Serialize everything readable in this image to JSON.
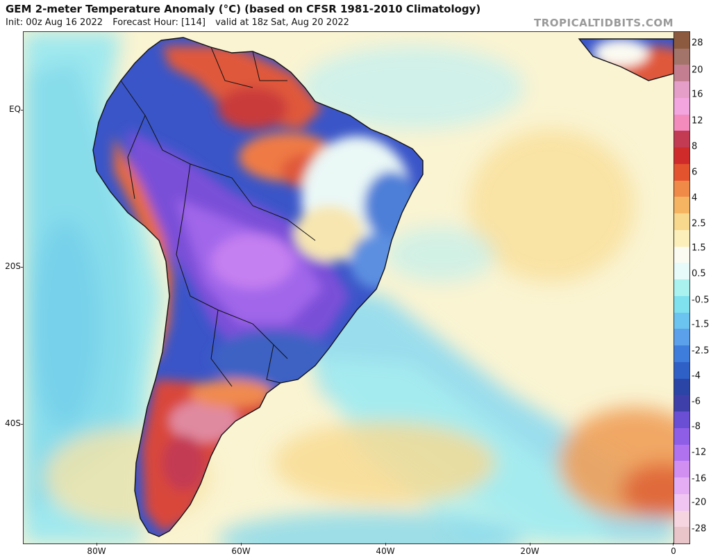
{
  "header": {
    "title": "GEM 2-meter Temperature Anomaly (°C) (based on CFSR 1981-2010 Climatology)",
    "init": "Init: 00z Aug 16 2022",
    "forecast_hour": "Forecast Hour: [114]",
    "valid": "valid at 18z Sat, Aug 20 2022"
  },
  "watermark": "TROPICALTIDBITS.COM",
  "axes": {
    "lat_labels": [
      "EQ",
      "20S",
      "40S"
    ],
    "lon_labels": [
      "80W",
      "60W",
      "40W",
      "20W",
      "0"
    ]
  },
  "colorbar": {
    "labels": [
      "28",
      "20",
      "16",
      "12",
      "8",
      "6",
      "4",
      "2.5",
      "1.5",
      "0.5",
      "-0.5",
      "-1.5",
      "-2.5",
      "-4",
      "-6",
      "-8",
      "-12",
      "-16",
      "-20",
      "-28"
    ],
    "colors": [
      "#8c5a3e",
      "#a3746a",
      "#c37f91",
      "#e59ec7",
      "#f3a5df",
      "#f48bbd",
      "#c33b52",
      "#d02b2b",
      "#e3532e",
      "#ef8a48",
      "#f4b462",
      "#f8d88c",
      "#fcefb9",
      "#fbfbf2",
      "#e8fbfb",
      "#a9f2ef",
      "#7fe0ee",
      "#6bc3f0",
      "#5ba0ea",
      "#3f7ddc",
      "#2f60c6",
      "#2a45a5",
      "#3e3fa8",
      "#6a4ed4",
      "#8e5ee6",
      "#b072ee",
      "#d18ff2",
      "#e4adf4",
      "#f0c5f2",
      "#f6d5e0",
      "#e9c5c9"
    ]
  },
  "map": {
    "ocean_color": "#f7f0c8",
    "land_outline_color": "#111111"
  }
}
